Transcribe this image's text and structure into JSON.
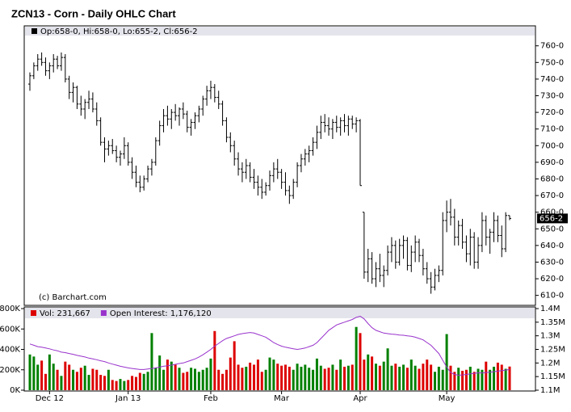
{
  "chart_data": [
    {
      "type": "ohlc",
      "title": "ZCN13 - Corn - Daily OHLC Chart",
      "legend_text": "Op:658-0, Hi:658-0, Lo:655-2, Cl:656-2",
      "copyright": "(c) Barchart.com",
      "last_label": "656-2",
      "color": "#000000",
      "ylim": [
        604,
        772
      ],
      "yticks": [
        {
          "value": 610,
          "label": "610-0"
        },
        {
          "value": 620,
          "label": "620-0"
        },
        {
          "value": 630,
          "label": "630-0"
        },
        {
          "value": 640,
          "label": "640-0"
        },
        {
          "value": 650,
          "label": "650-0"
        },
        {
          "value": 660,
          "label": "660-0"
        },
        {
          "value": 670,
          "label": "670-0"
        },
        {
          "value": 680,
          "label": "680-0"
        },
        {
          "value": 690,
          "label": "690-0"
        },
        {
          "value": 700,
          "label": "700-0"
        },
        {
          "value": 710,
          "label": "710-0"
        },
        {
          "value": 720,
          "label": "720-0"
        },
        {
          "value": 730,
          "label": "730-0"
        },
        {
          "value": 740,
          "label": "740-0"
        },
        {
          "value": 750,
          "label": "750-0"
        },
        {
          "value": 760,
          "label": "760-0"
        }
      ],
      "open": [
        737,
        742,
        748,
        752,
        750,
        745,
        748,
        752,
        748,
        753,
        740,
        732,
        735,
        725,
        722,
        726,
        728,
        722,
        715,
        702,
        698,
        700,
        697,
        693,
        695,
        700,
        690,
        684,
        678,
        675,
        680,
        686,
        690,
        703,
        712,
        718,
        716,
        720,
        718,
        722,
        719,
        711,
        714,
        718,
        722,
        728,
        733,
        735,
        729,
        725,
        715,
        705,
        700,
        692,
        686,
        684,
        688,
        681,
        678,
        675,
        672,
        676,
        682,
        686,
        684,
        678,
        673,
        670,
        678,
        688,
        692,
        695,
        697,
        702,
        708,
        714,
        712,
        710,
        714,
        711,
        715,
        712,
        716,
        713,
        715,
        660,
        624,
        632,
        620,
        626,
        622,
        625,
        636,
        640,
        630,
        640,
        643,
        628,
        636,
        642,
        634,
        626,
        620,
        615,
        622,
        625,
        655,
        660,
        657,
        645,
        652,
        642,
        635,
        645,
        630,
        640,
        655,
        645,
        648,
        655,
        646,
        638,
        658
      ],
      "high": [
        744,
        750,
        755,
        756,
        753,
        750,
        755,
        754,
        756,
        755,
        742,
        738,
        736,
        730,
        728,
        733,
        732,
        726,
        717,
        705,
        703,
        704,
        700,
        697,
        705,
        702,
        693,
        688,
        682,
        682,
        688,
        692,
        705,
        715,
        722,
        724,
        722,
        725,
        723,
        726,
        721,
        716,
        720,
        724,
        730,
        736,
        739,
        737,
        733,
        727,
        717,
        708,
        703,
        696,
        690,
        692,
        690,
        686,
        682,
        680,
        678,
        685,
        690,
        692,
        686,
        684,
        676,
        680,
        690,
        695,
        698,
        700,
        705,
        712,
        718,
        719,
        717,
        716,
        718,
        717,
        719,
        718,
        718,
        717,
        716,
        660,
        638,
        636,
        630,
        635,
        628,
        640,
        645,
        643,
        644,
        646,
        645,
        640,
        646,
        644,
        638,
        630,
        624,
        626,
        628,
        660,
        667,
        668,
        662,
        655,
        656,
        646,
        650,
        648,
        645,
        660,
        658,
        650,
        660,
        658,
        652,
        660,
        658
      ],
      "low": [
        733,
        740,
        745,
        748,
        742,
        740,
        744,
        746,
        745,
        738,
        728,
        726,
        722,
        718,
        716,
        722,
        720,
        712,
        700,
        690,
        694,
        695,
        690,
        688,
        692,
        688,
        680,
        675,
        672,
        673,
        678,
        682,
        688,
        700,
        708,
        712,
        710,
        715,
        712,
        716,
        708,
        706,
        710,
        714,
        718,
        724,
        728,
        726,
        722,
        712,
        702,
        696,
        688,
        682,
        678,
        680,
        678,
        674,
        670,
        668,
        670,
        673,
        678,
        680,
        674,
        670,
        665,
        668,
        675,
        684,
        688,
        690,
        694,
        698,
        704,
        708,
        706,
        704,
        708,
        706,
        708,
        706,
        710,
        708,
        676,
        620,
        618,
        617,
        615,
        618,
        615,
        622,
        630,
        626,
        628,
        632,
        625,
        624,
        630,
        630,
        622,
        617,
        611,
        613,
        618,
        622,
        648,
        652,
        640,
        640,
        638,
        630,
        628,
        626,
        626,
        636,
        640,
        635,
        642,
        642,
        633,
        636,
        655.25
      ],
      "close": [
        742,
        748,
        752,
        750,
        745,
        748,
        752,
        748,
        753,
        740,
        732,
        735,
        725,
        722,
        726,
        728,
        722,
        715,
        702,
        698,
        700,
        697,
        693,
        695,
        700,
        690,
        684,
        678,
        675,
        680,
        686,
        690,
        703,
        712,
        718,
        716,
        720,
        718,
        722,
        719,
        711,
        714,
        718,
        722,
        728,
        733,
        735,
        729,
        725,
        715,
        705,
        700,
        692,
        686,
        684,
        688,
        681,
        678,
        675,
        672,
        676,
        682,
        686,
        684,
        678,
        673,
        670,
        678,
        688,
        692,
        695,
        697,
        702,
        708,
        714,
        712,
        710,
        714,
        711,
        715,
        712,
        716,
        713,
        715,
        676,
        624,
        632,
        620,
        626,
        622,
        625,
        636,
        640,
        630,
        640,
        643,
        628,
        636,
        642,
        634,
        626,
        620,
        615,
        622,
        625,
        655,
        660,
        657,
        645,
        652,
        642,
        635,
        645,
        630,
        640,
        655,
        645,
        648,
        655,
        646,
        638,
        658,
        656.25
      ]
    },
    {
      "type": "bar",
      "categories": [
        null,
        null,
        null,
        null,
        null,
        "Dec 12",
        null,
        null,
        null,
        null,
        null,
        null,
        null,
        null,
        null,
        null,
        null,
        null,
        null,
        null,
        null,
        null,
        null,
        null,
        null,
        "Jan 13",
        null,
        null,
        null,
        null,
        null,
        null,
        null,
        null,
        null,
        null,
        null,
        null,
        null,
        null,
        null,
        null,
        null,
        null,
        null,
        null,
        "Feb",
        null,
        null,
        null,
        null,
        null,
        null,
        null,
        null,
        null,
        null,
        null,
        null,
        null,
        null,
        null,
        null,
        null,
        "Mar",
        null,
        null,
        null,
        null,
        null,
        null,
        null,
        null,
        null,
        null,
        null,
        null,
        null,
        null,
        null,
        null,
        null,
        null,
        null,
        "Apr",
        null,
        null,
        null,
        null,
        null,
        null,
        null,
        null,
        null,
        null,
        null,
        null,
        null,
        null,
        null,
        null,
        null,
        null,
        null,
        null,
        null,
        "May",
        null,
        null,
        null,
        null,
        null,
        null,
        null,
        null,
        null,
        null,
        null,
        null,
        null,
        null,
        null,
        null
      ],
      "ylim": [
        0,
        800000
      ],
      "yticks": [
        {
          "value": 0,
          "label": "0K"
        },
        {
          "value": 200000,
          "label": "200K"
        },
        {
          "value": 400000,
          "label": "400K"
        },
        {
          "value": 600000,
          "label": "600K"
        },
        {
          "value": 800000,
          "label": "800K"
        }
      ],
      "y2lim": [
        1100000,
        1400000
      ],
      "y2ticks": [
        {
          "value": 1100000,
          "label": "1.1M"
        },
        {
          "value": 1150000,
          "label": "1.15M"
        },
        {
          "value": 1200000,
          "label": "1.2M"
        },
        {
          "value": 1250000,
          "label": "1.25M"
        },
        {
          "value": 1300000,
          "label": "1.3M"
        },
        {
          "value": 1350000,
          "label": "1.35M"
        },
        {
          "value": 1400000,
          "label": "1.4M"
        }
      ],
      "series": [
        {
          "name": "Vol: 231,667",
          "color": "#dd0000",
          "up_color": "#008000",
          "values": [
            350000,
            330000,
            250000,
            290000,
            160000,
            350000,
            260000,
            200000,
            140000,
            280000,
            250000,
            200000,
            180000,
            220000,
            240000,
            150000,
            210000,
            200000,
            150000,
            140000,
            200000,
            100000,
            90000,
            110000,
            90000,
            100000,
            140000,
            130000,
            170000,
            160000,
            180000,
            560000,
            220000,
            340000,
            200000,
            300000,
            280000,
            250000,
            220000,
            170000,
            180000,
            220000,
            210000,
            180000,
            200000,
            220000,
            310000,
            580000,
            200000,
            160000,
            200000,
            320000,
            480000,
            250000,
            220000,
            230000,
            270000,
            250000,
            300000,
            180000,
            200000,
            320000,
            300000,
            260000,
            240000,
            250000,
            230000,
            200000,
            260000,
            230000,
            250000,
            220000,
            200000,
            310000,
            240000,
            210000,
            220000,
            250000,
            200000,
            300000,
            230000,
            240000,
            250000,
            620000,
            560000,
            300000,
            350000,
            330000,
            260000,
            240000,
            280000,
            410000,
            240000,
            260000,
            230000,
            250000,
            220000,
            300000,
            240000,
            210000,
            260000,
            300000,
            250000,
            180000,
            230000,
            200000,
            550000,
            240000,
            180000,
            220000,
            190000,
            200000,
            230000,
            180000,
            210000,
            200000,
            280000,
            200000,
            230000,
            270000,
            250000,
            210000,
            231667
          ]
        },
        {
          "name": "Open Interest: 1,176,120",
          "color": "#9933cc",
          "axis": "y2",
          "values": [
            1270000,
            1265000,
            1260000,
            1258000,
            1255000,
            1252000,
            1248000,
            1245000,
            1240000,
            1238000,
            1235000,
            1232000,
            1228000,
            1225000,
            1222000,
            1218000,
            1215000,
            1212000,
            1208000,
            1205000,
            1200000,
            1196000,
            1192000,
            1188000,
            1185000,
            1182000,
            1180000,
            1178000,
            1176000,
            1176000,
            1178000,
            1180000,
            1182000,
            1185000,
            1188000,
            1190000,
            1192000,
            1195000,
            1198000,
            1200000,
            1205000,
            1210000,
            1215000,
            1222000,
            1230000,
            1240000,
            1250000,
            1262000,
            1272000,
            1282000,
            1290000,
            1295000,
            1300000,
            1305000,
            1308000,
            1310000,
            1312000,
            1310000,
            1305000,
            1300000,
            1295000,
            1285000,
            1275000,
            1268000,
            1262000,
            1258000,
            1255000,
            1252000,
            1250000,
            1252000,
            1255000,
            1260000,
            1265000,
            1275000,
            1290000,
            1305000,
            1320000,
            1330000,
            1340000,
            1345000,
            1350000,
            1355000,
            1360000,
            1368000,
            1372000,
            1362000,
            1345000,
            1330000,
            1320000,
            1315000,
            1310000,
            1308000,
            1306000,
            1305000,
            1303000,
            1302000,
            1300000,
            1298000,
            1295000,
            1290000,
            1285000,
            1275000,
            1265000,
            1250000,
            1235000,
            1210000,
            1185000,
            1165000,
            1158000,
            1155000,
            1156000,
            1158000,
            1160000,
            1162000,
            1164000,
            1163000,
            1165000,
            1166000,
            1168000,
            1170000,
            1172000,
            1174000,
            1176120
          ]
        }
      ]
    }
  ]
}
